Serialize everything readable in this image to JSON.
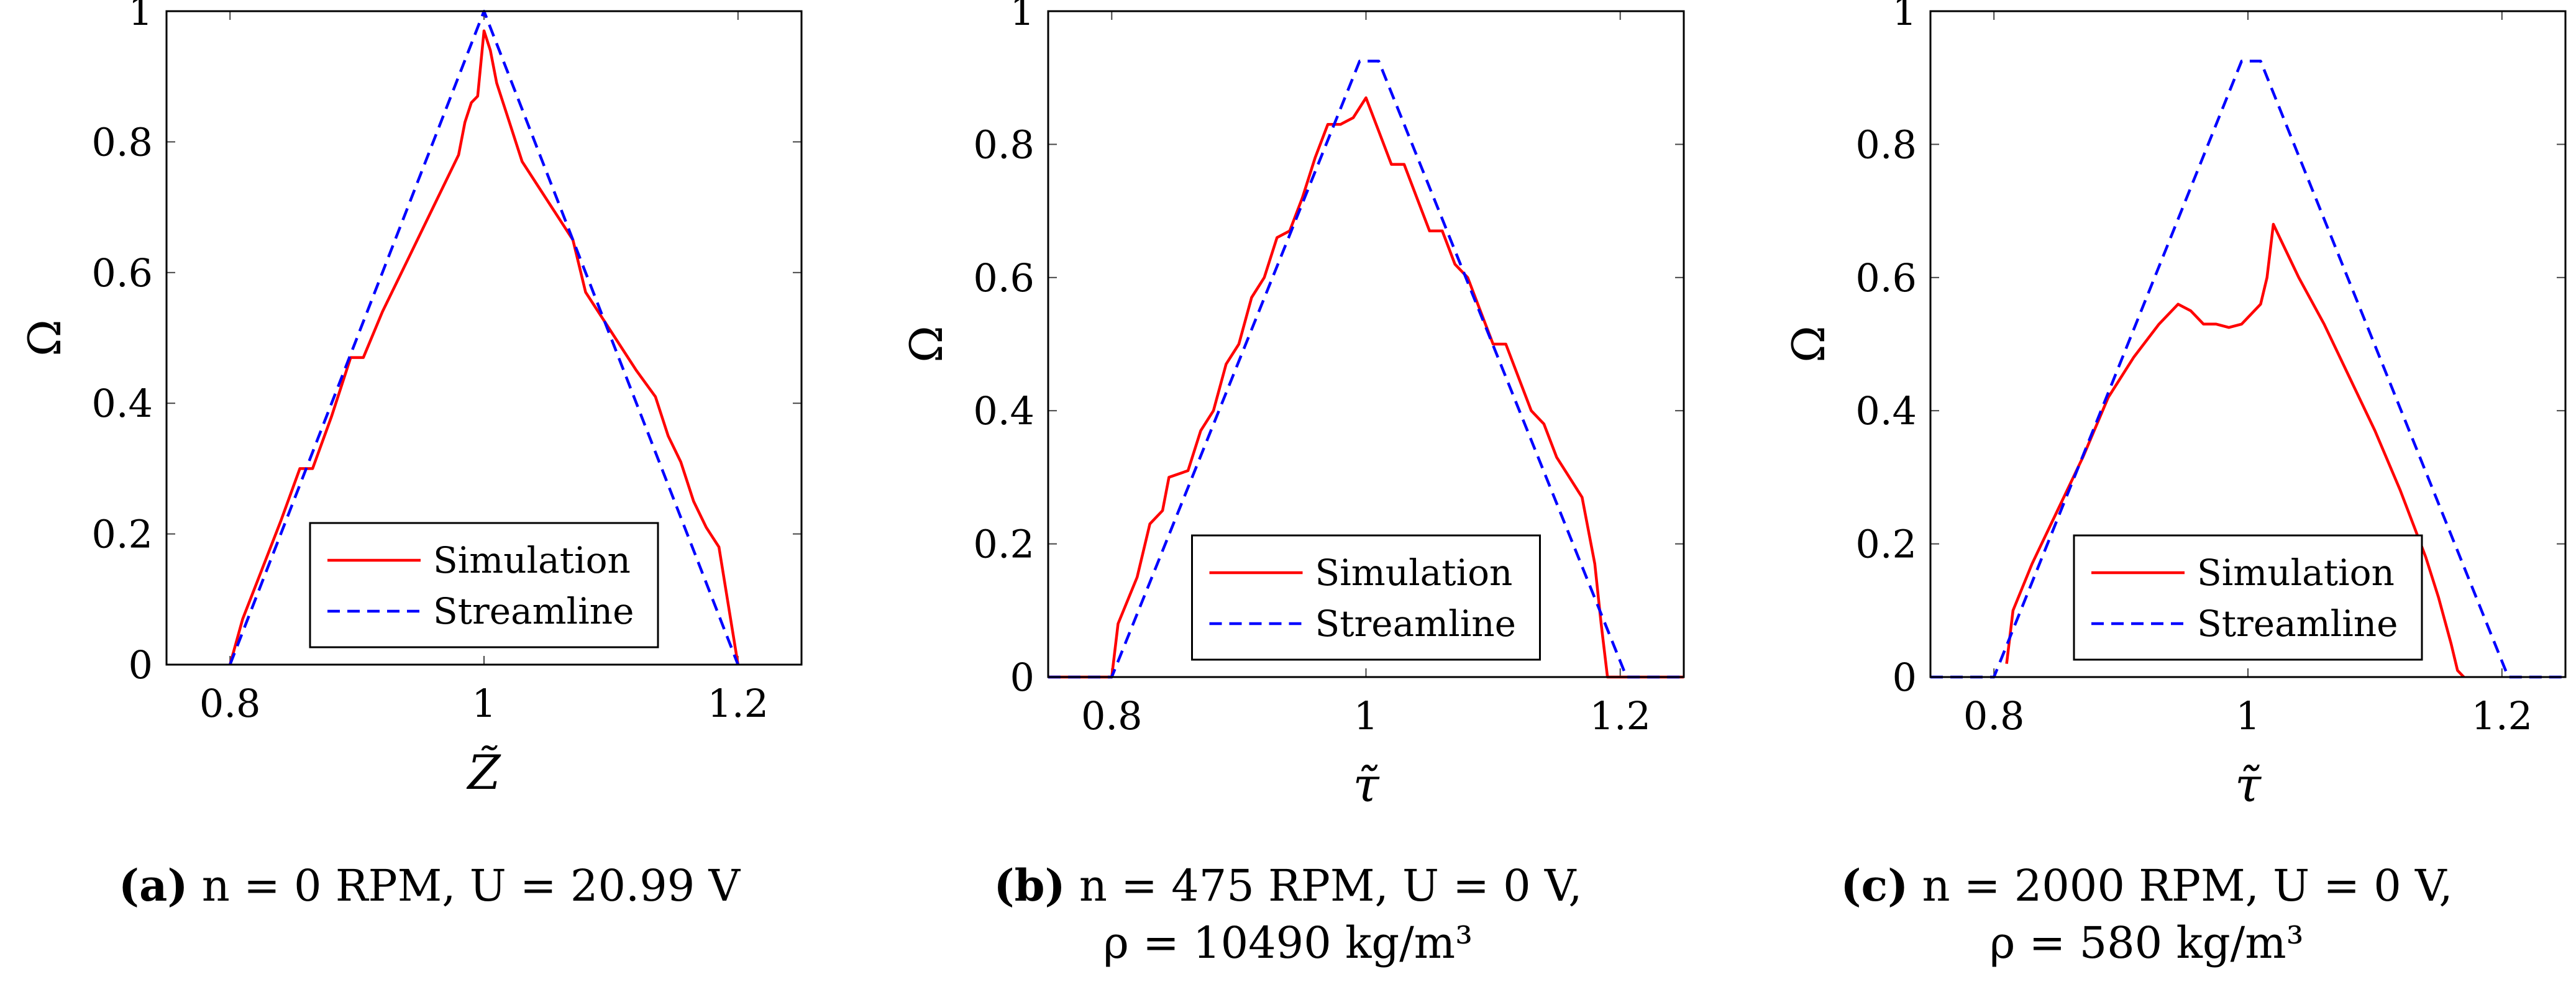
{
  "colors": {
    "simulation": "#ff0000",
    "streamline": "#0000ff",
    "axis": "#000000",
    "tick": "#444444"
  },
  "chart_data": [
    {
      "type": "line",
      "panel": "a",
      "xlabel": "Z̃",
      "ylabel": "Ω",
      "xlim": [
        0.75,
        1.25
      ],
      "ylim": [
        0,
        1
      ],
      "xticks": [
        0.8,
        1,
        1.2
      ],
      "xtick_labels": [
        "0.8",
        "1",
        "1.2"
      ],
      "yticks": [
        0,
        0.2,
        0.4,
        0.6,
        0.8,
        1
      ],
      "ytick_labels": [
        "0",
        "0.2",
        "0.4",
        "0.6",
        "0.8",
        "1"
      ],
      "legend_position": "bottom-center",
      "series": [
        {
          "name": "Simulation",
          "style": "solid",
          "x": [
            0.8,
            0.81,
            0.82,
            0.84,
            0.855,
            0.865,
            0.88,
            0.895,
            0.905,
            0.92,
            0.94,
            0.96,
            0.98,
            0.985,
            0.99,
            0.995,
            1.0,
            1.005,
            1.01,
            1.02,
            1.03,
            1.05,
            1.07,
            1.08,
            1.1,
            1.12,
            1.135,
            1.145,
            1.155,
            1.165,
            1.175,
            1.185,
            1.2
          ],
          "y": [
            0,
            0.07,
            0.12,
            0.22,
            0.3,
            0.3,
            0.38,
            0.47,
            0.47,
            0.54,
            0.62,
            0.7,
            0.78,
            0.83,
            0.86,
            0.87,
            0.97,
            0.94,
            0.89,
            0.83,
            0.77,
            0.71,
            0.65,
            0.57,
            0.51,
            0.45,
            0.41,
            0.35,
            0.31,
            0.25,
            0.21,
            0.18,
            0
          ]
        },
        {
          "name": "Streamline",
          "style": "dashed",
          "x": [
            0.8,
            1.0,
            1.2
          ],
          "y": [
            0,
            1.0,
            0
          ]
        }
      ],
      "caption": {
        "label": "(a)",
        "line1": "n = 0 RPM, U = 20.99 V",
        "line2": ""
      }
    },
    {
      "type": "line",
      "panel": "b",
      "xlabel": "τ̃",
      "ylabel": "Ω",
      "xlim": [
        0.75,
        1.25
      ],
      "ylim": [
        0,
        1
      ],
      "xticks": [
        0.8,
        1,
        1.2
      ],
      "xtick_labels": [
        "0.8",
        "1",
        "1.2"
      ],
      "yticks": [
        0,
        0.2,
        0.4,
        0.6,
        0.8,
        1
      ],
      "ytick_labels": [
        "0",
        "0.2",
        "0.4",
        "0.6",
        "0.8",
        "1"
      ],
      "legend_position": "bottom-center",
      "series": [
        {
          "name": "Simulation",
          "style": "solid",
          "x": [
            0.75,
            0.8,
            0.805,
            0.82,
            0.83,
            0.84,
            0.845,
            0.86,
            0.87,
            0.88,
            0.89,
            0.9,
            0.91,
            0.92,
            0.93,
            0.94,
            0.95,
            0.96,
            0.97,
            0.98,
            0.99,
            1.0,
            1.01,
            1.02,
            1.03,
            1.04,
            1.05,
            1.06,
            1.07,
            1.08,
            1.09,
            1.1,
            1.11,
            1.12,
            1.13,
            1.14,
            1.15,
            1.16,
            1.17,
            1.18,
            1.185,
            1.19,
            1.25
          ],
          "y": [
            0,
            0,
            0.08,
            0.15,
            0.23,
            0.25,
            0.3,
            0.31,
            0.37,
            0.4,
            0.47,
            0.5,
            0.57,
            0.6,
            0.66,
            0.67,
            0.72,
            0.78,
            0.83,
            0.83,
            0.84,
            0.87,
            0.82,
            0.77,
            0.77,
            0.72,
            0.67,
            0.67,
            0.62,
            0.6,
            0.55,
            0.5,
            0.5,
            0.45,
            0.4,
            0.38,
            0.33,
            0.3,
            0.27,
            0.17,
            0.08,
            0,
            0
          ]
        },
        {
          "name": "Streamline",
          "style": "dashed",
          "x": [
            0.75,
            0.8,
            0.995,
            1.01,
            1.205,
            1.25
          ],
          "y": [
            0,
            0,
            0.925,
            0.925,
            0,
            0
          ]
        }
      ],
      "caption": {
        "label": "(b)",
        "line1": "n = 475 RPM, U = 0 V,",
        "line2": "ρ = 10490 kg/m³"
      }
    },
    {
      "type": "line",
      "panel": "c",
      "xlabel": "τ̃",
      "ylabel": "Ω",
      "xlim": [
        0.75,
        1.25
      ],
      "ylim": [
        0,
        1
      ],
      "xticks": [
        0.8,
        1,
        1.2
      ],
      "xtick_labels": [
        "0.8",
        "1",
        "1.2"
      ],
      "yticks": [
        0,
        0.2,
        0.4,
        0.6,
        0.8,
        1
      ],
      "ytick_labels": [
        "0",
        "0.2",
        "0.4",
        "0.6",
        "0.8",
        "1"
      ],
      "legend_position": "bottom-center",
      "series": [
        {
          "name": "Simulation",
          "style": "solid",
          "x": [
            0.81,
            0.815,
            0.83,
            0.85,
            0.87,
            0.89,
            0.91,
            0.93,
            0.945,
            0.955,
            0.965,
            0.975,
            0.985,
            0.995,
            1.01,
            1.015,
            1.02,
            1.025,
            1.03,
            1.04,
            1.06,
            1.08,
            1.1,
            1.12,
            1.14,
            1.15,
            1.16,
            1.165,
            1.17
          ],
          "y": [
            0.02,
            0.1,
            0.17,
            0.25,
            0.33,
            0.42,
            0.48,
            0.53,
            0.56,
            0.55,
            0.53,
            0.53,
            0.525,
            0.53,
            0.56,
            0.6,
            0.68,
            0.66,
            0.64,
            0.6,
            0.53,
            0.45,
            0.37,
            0.28,
            0.18,
            0.12,
            0.05,
            0.01,
            0
          ]
        },
        {
          "name": "Streamline",
          "style": "dashed",
          "x": [
            0.75,
            0.8,
            0.995,
            1.01,
            1.205,
            1.25
          ],
          "y": [
            0,
            0,
            0.925,
            0.925,
            0,
            0
          ]
        }
      ],
      "caption": {
        "label": "(c)",
        "line1": "n = 2000 RPM, U = 0 V,",
        "line2": "ρ = 580 kg/m³"
      }
    }
  ]
}
